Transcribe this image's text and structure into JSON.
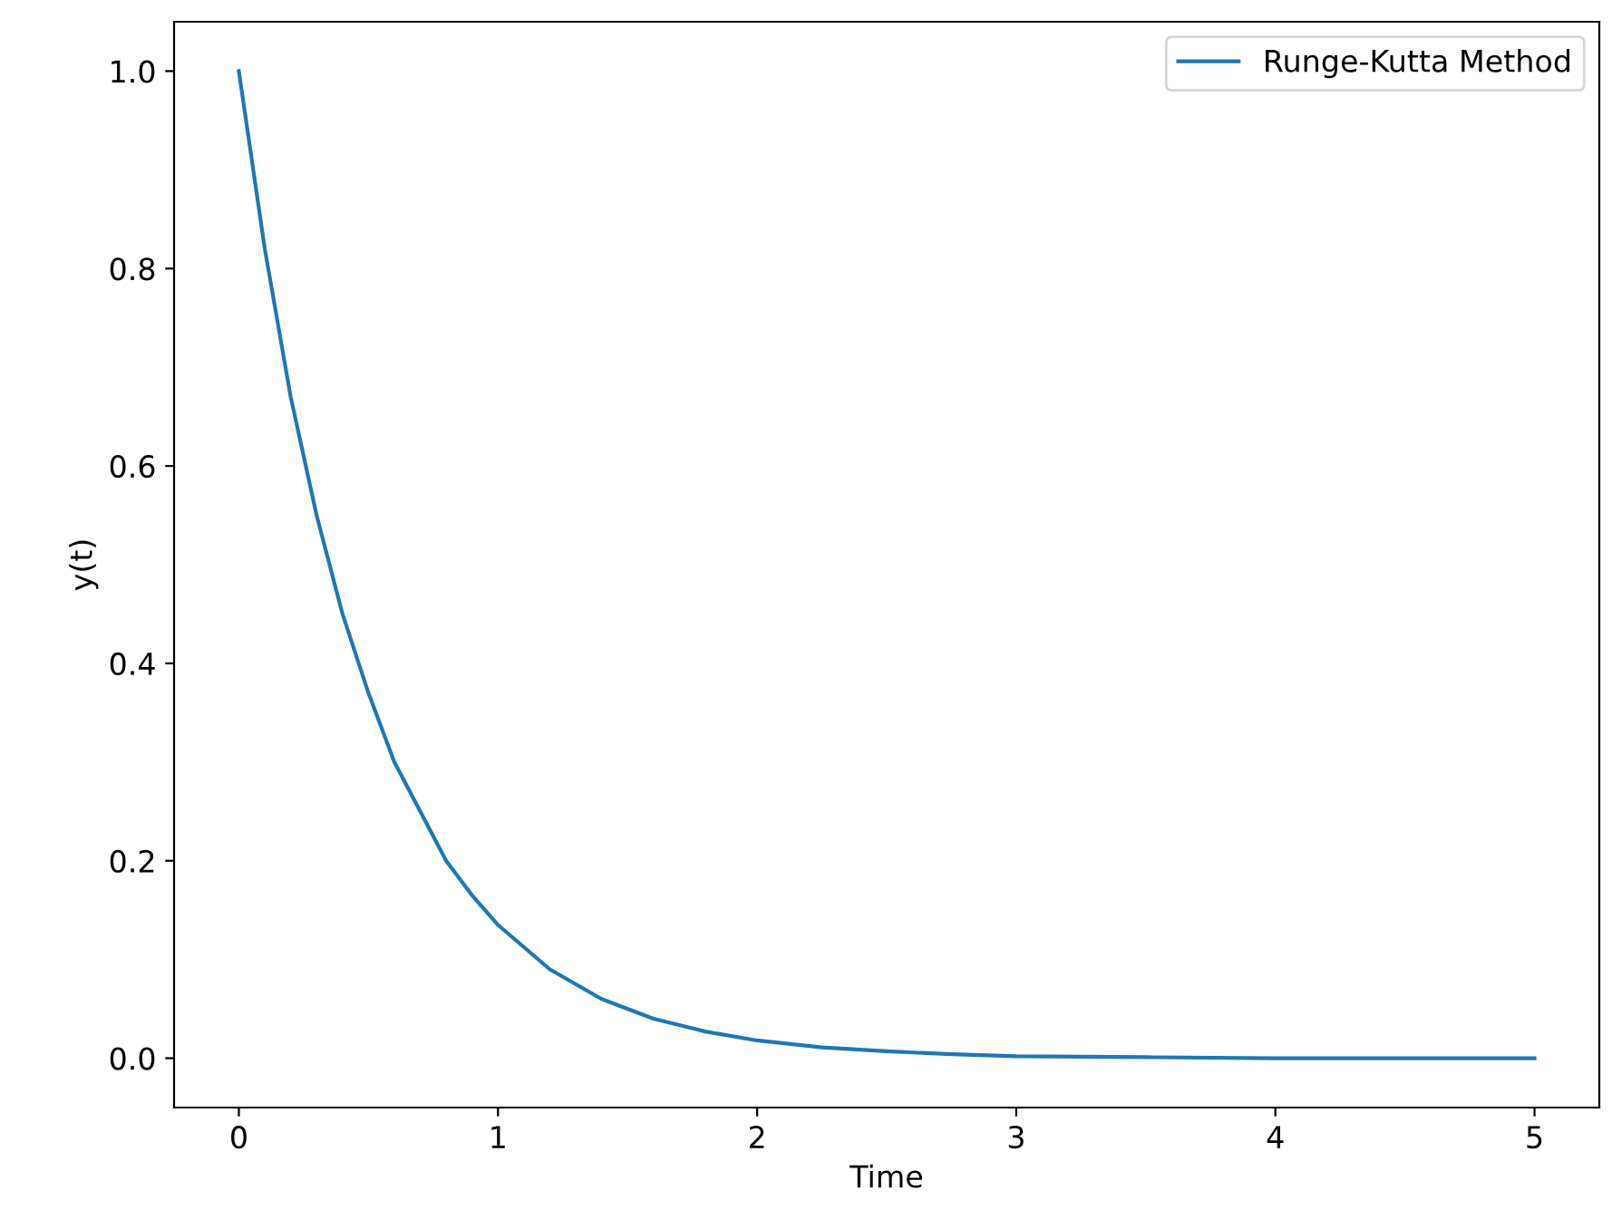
{
  "chart_data": {
    "type": "line",
    "xlabel": "Time",
    "ylabel": "y(t)",
    "series": [
      {
        "name": "Runge-Kutta Method",
        "color": "#1f77b4",
        "x": [
          0,
          0.1,
          0.2,
          0.3,
          0.4,
          0.5,
          0.6,
          0.7,
          0.8,
          0.9,
          1.0,
          1.2,
          1.4,
          1.6,
          1.8,
          2.0,
          2.25,
          2.5,
          2.75,
          3.0,
          3.5,
          4.0,
          4.5,
          5.0
        ],
        "values": [
          1.0,
          0.82,
          0.67,
          0.55,
          0.45,
          0.37,
          0.3,
          0.25,
          0.2,
          0.165,
          0.135,
          0.09,
          0.06,
          0.04,
          0.027,
          0.018,
          0.011,
          0.007,
          0.004,
          0.002,
          0.001,
          0.0,
          0.0,
          0.0
        ]
      }
    ],
    "xlim": [
      -0.25,
      5.25
    ],
    "ylim": [
      -0.05,
      1.05
    ],
    "xticks": [
      0,
      1,
      2,
      3,
      4,
      5
    ],
    "yticks": [
      {
        "value": 0,
        "label": "0.0"
      },
      {
        "value": 0.2,
        "label": "0.2"
      },
      {
        "value": 0.4,
        "label": "0.4"
      },
      {
        "value": 0.6,
        "label": "0.6"
      },
      {
        "value": 0.8,
        "label": "0.8"
      },
      {
        "value": 1.0,
        "label": "1.0"
      }
    ],
    "legend": "top right",
    "grid": false,
    "marker": "none",
    "line_style": "solid"
  }
}
